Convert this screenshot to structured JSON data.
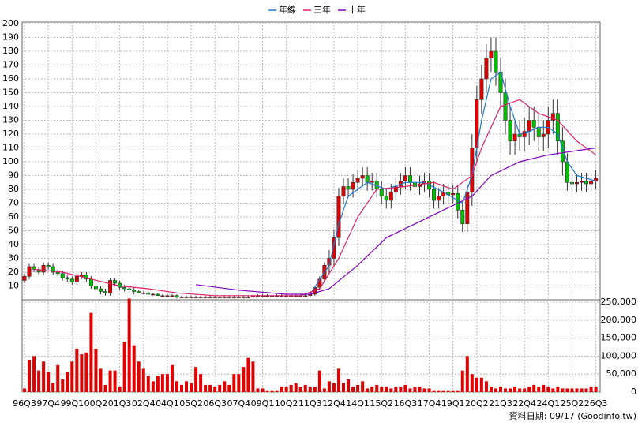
{
  "chart_data": {
    "type": "candlestick",
    "legend": [
      "年線",
      "三年",
      "十年"
    ],
    "source": "資料日期: 09/17 (Goodinfo.tw)",
    "categories": [
      "96Q3",
      null,
      null,
      null,
      null,
      "97Q4",
      null,
      null,
      null,
      null,
      "99Q1",
      null,
      null,
      null,
      null,
      "00Q2",
      null,
      null,
      null,
      null,
      "01Q3",
      null,
      null,
      null,
      null,
      "02Q4",
      null,
      null,
      null,
      null,
      "04Q1",
      null,
      null,
      null,
      null,
      "05Q2",
      null,
      null,
      null,
      null,
      "06Q3",
      null,
      null,
      null,
      null,
      "07Q4",
      null,
      null,
      null,
      null,
      "09Q1",
      null,
      null,
      null,
      null,
      "10Q2",
      null,
      null,
      null,
      null,
      "11Q3",
      null,
      null,
      null,
      null,
      "12Q4",
      null,
      null,
      null,
      null,
      "14Q1",
      null,
      null,
      null,
      null,
      "15Q2",
      null,
      null,
      null,
      null,
      "16Q3",
      null,
      null,
      null,
      null,
      "17Q4",
      null,
      null,
      null,
      null,
      "19Q1",
      null,
      null,
      null,
      null,
      "20Q2",
      null,
      null,
      null,
      null,
      "21Q3",
      null,
      null,
      null,
      null,
      "22Q4",
      null,
      null,
      null,
      null,
      "24Q1",
      null,
      null,
      null,
      null,
      "25Q2",
      null,
      null,
      null,
      null,
      "26Q3"
    ],
    "open": [
      14,
      17,
      24,
      22,
      20,
      25,
      24,
      20,
      19,
      16,
      15,
      13,
      17,
      18,
      15,
      10,
      8,
      6,
      5,
      14,
      12,
      9,
      8,
      7,
      6,
      5,
      5,
      4,
      4,
      3,
      3,
      3,
      3,
      2,
      2,
      2,
      2,
      2,
      2,
      2,
      2,
      2,
      2,
      2,
      2,
      2,
      2,
      2,
      2,
      3,
      3,
      3,
      3,
      3,
      3,
      3,
      3,
      3,
      3,
      3,
      3,
      4,
      9,
      15,
      25,
      30,
      45,
      75,
      82,
      80,
      85,
      88,
      90,
      85,
      86,
      80,
      75,
      72,
      78,
      82,
      86,
      90,
      85,
      82,
      84,
      86,
      80,
      72,
      75,
      78,
      76,
      77,
      65,
      55,
      78,
      110,
      145,
      160,
      175,
      180,
      165,
      150,
      130,
      115,
      120,
      118,
      122,
      130,
      125,
      118,
      120,
      130,
      135,
      115,
      100,
      85,
      84,
      85,
      86,
      84,
      86
    ],
    "high": [
      19,
      26,
      26,
      24,
      27,
      27,
      26,
      22,
      21,
      18,
      17,
      19,
      20,
      20,
      17,
      12,
      10,
      8,
      16,
      16,
      14,
      11,
      10,
      9,
      7,
      6,
      6,
      5,
      5,
      4,
      4,
      4,
      4,
      3,
      3,
      3,
      3,
      3,
      3,
      3,
      3,
      3,
      3,
      3,
      3,
      3,
      3,
      3,
      4,
      4,
      4,
      4,
      4,
      4,
      4,
      4,
      4,
      4,
      4,
      4,
      5,
      10,
      17,
      27,
      36,
      51,
      81,
      88,
      88,
      91,
      94,
      96,
      96,
      92,
      92,
      86,
      81,
      84,
      88,
      92,
      96,
      96,
      91,
      90,
      92,
      92,
      86,
      81,
      84,
      84,
      83,
      83,
      71,
      84,
      120,
      155,
      170,
      185,
      190,
      190,
      175,
      160,
      140,
      130,
      130,
      132,
      140,
      140,
      135,
      130,
      140,
      145,
      145,
      125,
      106,
      91,
      91,
      92,
      92,
      92,
      94
    ],
    "low": [
      12,
      15,
      20,
      18,
      18,
      22,
      18,
      17,
      14,
      13,
      11,
      11,
      15,
      13,
      8,
      6,
      4,
      3,
      3,
      10,
      7,
      6,
      5,
      4,
      5,
      4,
      4,
      3,
      3,
      2,
      2,
      2,
      1,
      1,
      1,
      1,
      1,
      1,
      1,
      1,
      1,
      1,
      1,
      1,
      1,
      1,
      1,
      1,
      1,
      2,
      2,
      2,
      2,
      2,
      2,
      2,
      2,
      2,
      2,
      2,
      2,
      3,
      7,
      13,
      19,
      24,
      39,
      69,
      74,
      74,
      79,
      82,
      79,
      79,
      74,
      69,
      66,
      66,
      72,
      76,
      80,
      79,
      76,
      76,
      78,
      74,
      66,
      66,
      69,
      70,
      70,
      59,
      49,
      49,
      68,
      100,
      135,
      150,
      165,
      155,
      140,
      120,
      105,
      105,
      108,
      108,
      112,
      115,
      108,
      108,
      110,
      120,
      105,
      90,
      79,
      78,
      78,
      79,
      78,
      78,
      80
    ],
    "close": [
      17,
      24,
      22,
      20,
      25,
      24,
      20,
      19,
      16,
      15,
      13,
      17,
      18,
      15,
      10,
      8,
      6,
      5,
      14,
      12,
      9,
      8,
      7,
      6,
      5,
      5,
      4,
      4,
      3,
      3,
      3,
      3,
      2,
      2,
      2,
      2,
      2,
      2,
      2,
      2,
      2,
      2,
      2,
      2,
      2,
      2,
      2,
      2,
      3,
      3,
      3,
      3,
      3,
      3,
      3,
      3,
      3,
      3,
      3,
      3,
      4,
      9,
      15,
      25,
      30,
      45,
      75,
      82,
      80,
      85,
      88,
      90,
      85,
      86,
      80,
      75,
      72,
      78,
      82,
      86,
      90,
      85,
      82,
      84,
      86,
      80,
      72,
      75,
      78,
      76,
      77,
      65,
      55,
      78,
      110,
      145,
      160,
      175,
      180,
      165,
      150,
      130,
      115,
      120,
      118,
      122,
      130,
      125,
      118,
      120,
      130,
      135,
      115,
      100,
      85,
      84,
      85,
      86,
      84,
      86,
      88
    ],
    "up_color": "#e00000",
    "down_color": "#00c000",
    "ylim": [
      0,
      200
    ],
    "yticks": [
      10,
      20,
      30,
      40,
      50,
      60,
      70,
      80,
      90,
      100,
      110,
      120,
      130,
      140,
      150,
      160,
      170,
      180,
      190,
      200
    ],
    "series": [
      {
        "name": "年線",
        "color": "#1e78d0",
        "x": [
          60,
          64,
          66,
          68,
          72,
          76,
          80,
          84,
          88,
          92,
          94,
          96,
          98,
          100,
          102,
          104,
          106,
          108,
          110,
          112,
          114,
          116,
          120
        ],
        "values": [
          4,
          25,
          55,
          75,
          85,
          80,
          85,
          85,
          78,
          70,
          90,
          130,
          160,
          165,
          140,
          120,
          122,
          125,
          125,
          120,
          100,
          90,
          86
        ]
      },
      {
        "name": "三年",
        "color": "#e0206a",
        "x": [
          2,
          8,
          14,
          20,
          26,
          32,
          40,
          50,
          58,
          62,
          66,
          70,
          74,
          80,
          86,
          90,
          94,
          96,
          100,
          104,
          108,
          112,
          116,
          120
        ],
        "values": [
          22,
          20,
          15,
          10,
          8,
          5,
          3,
          3,
          3,
          8,
          30,
          60,
          80,
          82,
          85,
          80,
          90,
          110,
          140,
          145,
          135,
          130,
          115,
          105
        ]
      },
      {
        "name": "十年",
        "color": "#8000c0",
        "x": [
          36,
          45,
          55,
          60,
          64,
          70,
          76,
          82,
          88,
          94,
          98,
          104,
          110,
          116,
          120
        ],
        "values": [
          11,
          7,
          4,
          4,
          8,
          25,
          45,
          55,
          65,
          75,
          90,
          100,
          105,
          108,
          110
        ]
      }
    ],
    "volume": [
      10000,
      90000,
      100000,
      60000,
      85000,
      55000,
      25000,
      75000,
      35000,
      55000,
      85000,
      120000,
      105000,
      110000,
      220000,
      120000,
      65000,
      20000,
      60000,
      60000,
      15000,
      140000,
      260000,
      130000,
      85000,
      65000,
      45000,
      30000,
      45000,
      50000,
      50000,
      75000,
      30000,
      20000,
      30000,
      25000,
      70000,
      50000,
      20000,
      20000,
      15000,
      20000,
      30000,
      20000,
      50000,
      50000,
      70000,
      95000,
      85000,
      10000,
      10000,
      5000,
      5000,
      5000,
      15000,
      15000,
      20000,
      25000,
      15000,
      20000,
      15000,
      15000,
      60000,
      10000,
      30000,
      25000,
      65000,
      25000,
      35000,
      15000,
      20000,
      30000,
      10000,
      15000,
      20000,
      15000,
      15000,
      10000,
      15000,
      15000,
      20000,
      10000,
      15000,
      15000,
      10000,
      10000,
      5000,
      5000,
      5000,
      5000,
      5000,
      5000,
      60000,
      100000,
      50000,
      40000,
      40000,
      30000,
      15000,
      10000,
      15000,
      10000,
      10000,
      15000,
      10000,
      10000,
      15000,
      20000,
      15000,
      20000,
      15000,
      10000,
      15000,
      10000,
      10000,
      10000,
      10000,
      10000,
      10000,
      15000,
      15000
    ],
    "volume_color": "#e00000",
    "y2lim": [
      0,
      250000
    ],
    "y2ticks": [
      0,
      {
        "value": 50000,
        "label": "50,000"
      },
      {
        "value": 100000,
        "label": "100,000"
      },
      {
        "value": 150000,
        "label": "150,000"
      },
      {
        "value": 200000,
        "label": "200,000"
      },
      {
        "value": 250000,
        "label": "250,000"
      }
    ],
    "grid": true
  }
}
